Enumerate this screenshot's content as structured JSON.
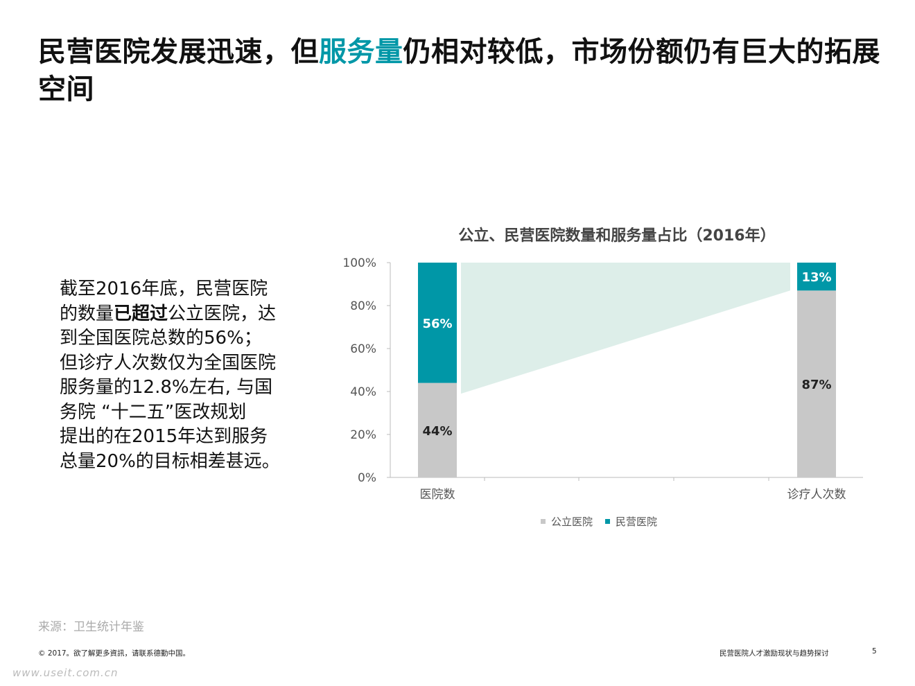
{
  "title": {
    "part1": "民营医院发展迅速，但",
    "highlight": "服务量",
    "part2": "仍相对较低，市场份额仍有巨大的拓展空间"
  },
  "summary": {
    "lines": [
      {
        "pre": "截至2016年底，民营医院",
        "strong": "",
        "post": ""
      },
      {
        "pre": "的数量",
        "strong": "已超过",
        "post": "公立医院，达"
      },
      {
        "pre": "到全国医院总数的56%；",
        "strong": "",
        "post": ""
      },
      {
        "pre": "但诊疗人次数仅为全国医院",
        "strong": "",
        "post": ""
      },
      {
        "pre": "服务量的12.8%左右, 与国",
        "strong": "",
        "post": ""
      },
      {
        "pre": "务院 “十二五”医改规划",
        "strong": "",
        "post": ""
      },
      {
        "pre": "提出的在2015年达到服务",
        "strong": "",
        "post": ""
      },
      {
        "pre": "总量20%的目标相差甚远。",
        "strong": "",
        "post": ""
      }
    ]
  },
  "chart_data": {
    "type": "bar",
    "stacked": true,
    "percent": true,
    "title": "公立、民营医院数量和服务量占比（2016年）",
    "categories": [
      "医院数",
      "诊疗人次数"
    ],
    "series": [
      {
        "name": "公立医院",
        "values": [
          44,
          87
        ],
        "labels": [
          "44%",
          "87%"
        ],
        "color": "#c8c8c8"
      },
      {
        "name": "民营医院",
        "values": [
          56,
          13
        ],
        "labels": [
          "56%",
          "13%"
        ],
        "color": "#0097a7"
      }
    ],
    "ylim": [
      0,
      100
    ],
    "yticks": [
      "0%",
      "20%",
      "40%",
      "60%",
      "80%",
      "100%"
    ],
    "connector_color": "#ddeee9",
    "legend_position": "bottom"
  },
  "source": "来源：卫生统计年鉴",
  "footer": {
    "left": "© 2017。欲了解更多資訊，请联系德勤中国。",
    "right": "民营医院人才激励现状与趋势探讨",
    "page": "5"
  },
  "watermark": "www.useit.com.cn"
}
